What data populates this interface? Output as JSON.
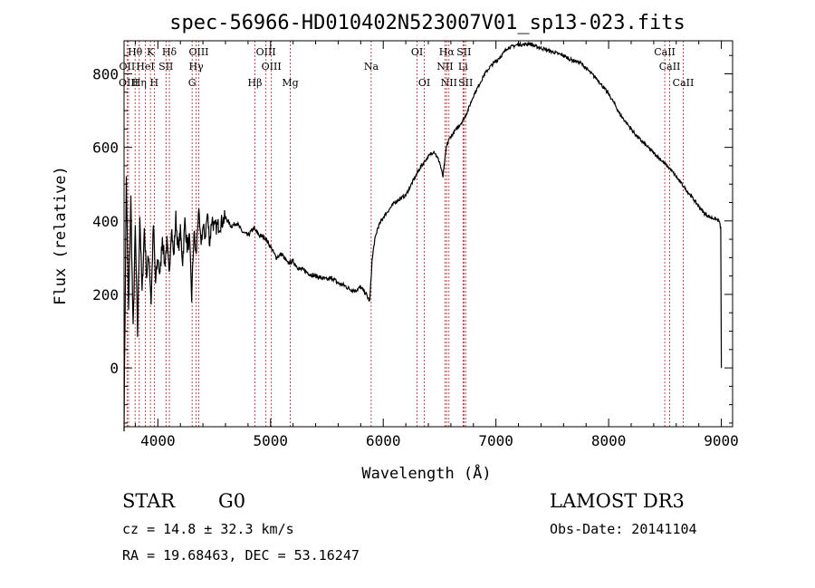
{
  "chart_data": {
    "type": "line",
    "title": "spec-56966-HD010402N523007V01_sp13-023.fits",
    "xlabel": "Wavelength (Å)",
    "ylabel": "Flux (relative)",
    "xlim": [
      3700,
      9100
    ],
    "ylim": [
      -160,
      890
    ],
    "xticks": [
      4000,
      5000,
      6000,
      7000,
      8000,
      9000
    ],
    "yticks": [
      0,
      200,
      400,
      600,
      800
    ],
    "line_color": "#000000",
    "marker_color": "#aa2020",
    "series": [
      {
        "name": "flux",
        "x": [
          3700,
          3720,
          3740,
          3760,
          3780,
          3800,
          3820,
          3840,
          3860,
          3880,
          3900,
          3920,
          3940,
          3960,
          3980,
          4000,
          4020,
          4040,
          4060,
          4080,
          4100,
          4120,
          4140,
          4160,
          4180,
          4200,
          4220,
          4240,
          4260,
          4280,
          4300,
          4320,
          4340,
          4360,
          4380,
          4400,
          4420,
          4440,
          4460,
          4480,
          4500,
          4550,
          4600,
          4650,
          4700,
          4750,
          4800,
          4850,
          4900,
          4950,
          5000,
          5050,
          5100,
          5150,
          5200,
          5250,
          5300,
          5350,
          5400,
          5450,
          5500,
          5550,
          5600,
          5650,
          5700,
          5750,
          5800,
          5850,
          5880,
          5900,
          5920,
          5950,
          6000,
          6050,
          6100,
          6150,
          6200,
          6250,
          6300,
          6350,
          6400,
          6450,
          6500,
          6530,
          6560,
          6580,
          6600,
          6650,
          6700,
          6720,
          6750,
          6800,
          6850,
          6900,
          6950,
          7000,
          7050,
          7100,
          7150,
          7200,
          7250,
          7300,
          7350,
          7400,
          7450,
          7500,
          7550,
          7600,
          7650,
          7700,
          7750,
          7800,
          7850,
          7900,
          7950,
          8000,
          8050,
          8100,
          8150,
          8200,
          8250,
          8300,
          8350,
          8400,
          8450,
          8500,
          8550,
          8600,
          8650,
          8700,
          8750,
          8800,
          8850,
          8900,
          8950,
          8980,
          8995,
          9000
        ],
        "values": [
          -150,
          520,
          150,
          460,
          100,
          380,
          90,
          420,
          200,
          380,
          250,
          310,
          180,
          390,
          230,
          300,
          250,
          360,
          280,
          340,
          250,
          390,
          300,
          410,
          320,
          370,
          290,
          400,
          330,
          350,
          190,
          370,
          300,
          430,
          340,
          380,
          360,
          420,
          340,
          410,
          380,
          390,
          410,
          385,
          395,
          370,
          360,
          380,
          360,
          355,
          330,
          300,
          310,
          285,
          290,
          270,
          265,
          255,
          250,
          245,
          240,
          245,
          230,
          225,
          215,
          210,
          220,
          200,
          180,
          290,
          340,
          380,
          410,
          430,
          450,
          460,
          470,
          500,
          530,
          555,
          575,
          590,
          560,
          520,
          600,
          620,
          630,
          650,
          670,
          680,
          700,
          740,
          770,
          800,
          820,
          835,
          850,
          870,
          875,
          880,
          880,
          882,
          875,
          870,
          865,
          860,
          855,
          850,
          840,
          835,
          830,
          815,
          800,
          785,
          765,
          745,
          720,
          690,
          670,
          650,
          630,
          615,
          600,
          585,
          570,
          555,
          540,
          520,
          500,
          480,
          460,
          440,
          420,
          410,
          405,
          400,
          380,
          0
        ]
      }
    ],
    "line_markers": [
      {
        "label": "Hθ",
        "wavelength": 3798,
        "row": 1
      },
      {
        "label": "OII",
        "wavelength": 3727,
        "row": 2
      },
      {
        "label": "OIII",
        "wavelength": 3740,
        "row": 3
      },
      {
        "label": "Hη",
        "wavelength": 3835,
        "row": 3
      },
      {
        "label": "K",
        "wavelength": 3934,
        "row": 1
      },
      {
        "label": "HeI",
        "wavelength": 3889,
        "row": 2
      },
      {
        "label": "SII",
        "wavelength": 4072,
        "row": 2
      },
      {
        "label": "H",
        "wavelength": 3968,
        "row": 3
      },
      {
        "label": "Hδ",
        "wavelength": 4102,
        "row": 1
      },
      {
        "label": "OIII",
        "wavelength": 4363,
        "row": 1
      },
      {
        "label": "Hγ",
        "wavelength": 4340,
        "row": 2
      },
      {
        "label": "G",
        "wavelength": 4304,
        "row": 3
      },
      {
        "label": "Hβ",
        "wavelength": 4861,
        "row": 3
      },
      {
        "label": "OIII",
        "wavelength": 4959,
        "row": 1
      },
      {
        "label": "OIII",
        "wavelength": 5007,
        "row": 2
      },
      {
        "label": "Mg",
        "wavelength": 5175,
        "row": 3
      },
      {
        "label": "Na",
        "wavelength": 5893,
        "row": 2
      },
      {
        "label": "OI",
        "wavelength": 6300,
        "row": 1
      },
      {
        "label": "OI",
        "wavelength": 6364,
        "row": 3
      },
      {
        "label": "Hα",
        "wavelength": 6563,
        "row": 1
      },
      {
        "label": "NII",
        "wavelength": 6548,
        "row": 2
      },
      {
        "label": "NII",
        "wavelength": 6583,
        "row": 3
      },
      {
        "label": "SII",
        "wavelength": 6716,
        "row": 1
      },
      {
        "label": "Li",
        "wavelength": 6708,
        "row": 2
      },
      {
        "label": "SII",
        "wavelength": 6731,
        "row": 3
      },
      {
        "label": "CaII",
        "wavelength": 8498,
        "row": 1
      },
      {
        "label": "CaII",
        "wavelength": 8542,
        "row": 2
      },
      {
        "label": "CaII",
        "wavelength": 8662,
        "row": 3
      }
    ]
  },
  "info": {
    "class": "STAR",
    "subclass": "G0",
    "survey": "LAMOST DR3",
    "cz": "cz = 14.8 ± 32.3 km/s",
    "obs_date": "Obs-Date: 20141104",
    "radec": "RA =  19.68463, DEC =  53.16247"
  }
}
